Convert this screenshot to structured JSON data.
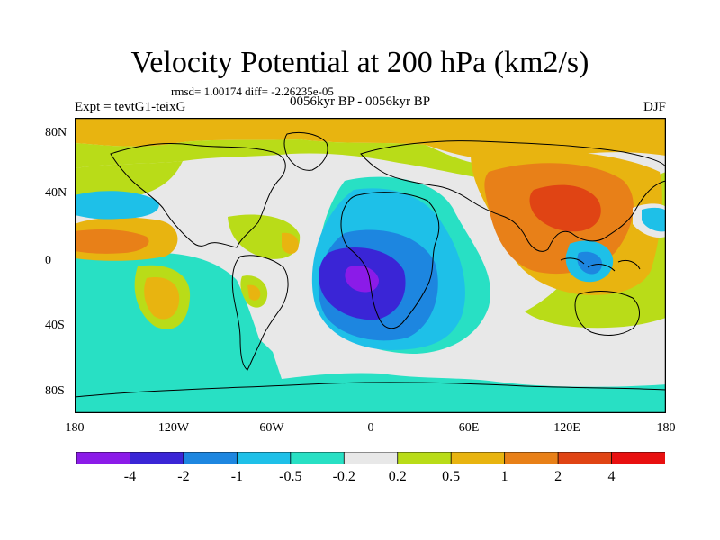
{
  "title": "Velocity Potential at 200 hPa (km2/s)",
  "stats": "rmsd= 1.00174 diff= -2.26235e-05",
  "experiment": "Expt = tevtG1-teixG",
  "period": "0056kyr BP - 0056kyr BP",
  "season": "DJF",
  "lat_labels": [
    "80N",
    "40N",
    "0",
    "40S",
    "80S"
  ],
  "lon_labels": [
    "180",
    "120W",
    "60W",
    "0",
    "60E",
    "120E",
    "180"
  ],
  "colorbar": {
    "labels": [
      "-4",
      "-2",
      "-1",
      "-0.5",
      "-0.2",
      "0.2",
      "0.5",
      "1",
      "2",
      "4"
    ],
    "colors": [
      "#8b1be8",
      "#3a25d6",
      "#1d86e0",
      "#1ec0e8",
      "#28e0c4",
      "#e8e8e8",
      "#b9dc18",
      "#e8b410",
      "#e88018",
      "#e04414",
      "#e81010"
    ]
  },
  "map": {
    "background": "#e8e8e8",
    "colors": {
      "neg4": "#8b1be8",
      "neg2": "#3a25d6",
      "neg1": "#1d86e0",
      "neg05": "#1ec0e8",
      "neg02": "#28e0c4",
      "zero": "#e8e8e8",
      "pos02": "#b9dc18",
      "pos05": "#e8b410",
      "pos1": "#e88018",
      "pos2": "#e04414"
    }
  }
}
